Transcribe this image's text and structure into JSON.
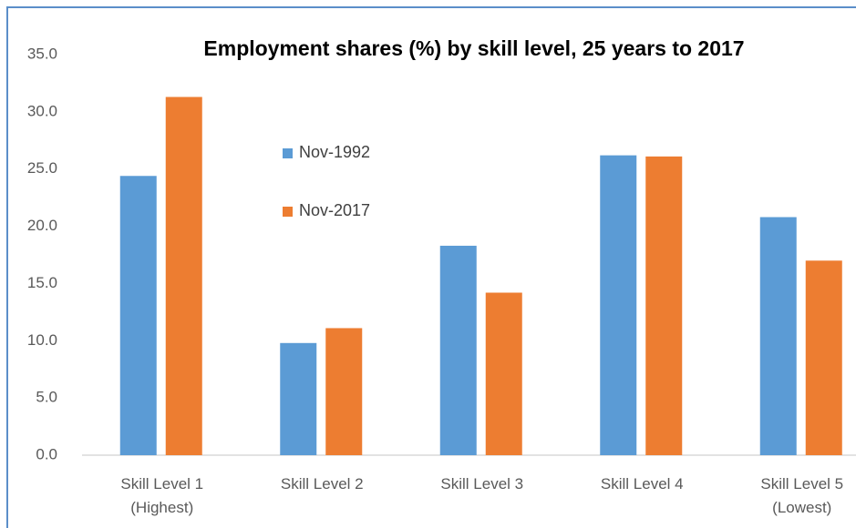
{
  "chart_data": {
    "type": "bar",
    "title": "Employment shares (%) by skill level, 25 years to 2017",
    "categories": [
      [
        "Skill Level 1",
        "(Highest)"
      ],
      [
        "Skill Level 2"
      ],
      [
        "Skill Level 3"
      ],
      [
        "Skill Level 4"
      ],
      [
        "Skill Level 5",
        "(Lowest)"
      ]
    ],
    "series": [
      {
        "name": "Nov-1992",
        "color": "#5b9bd5",
        "values": [
          24.4,
          9.8,
          18.3,
          26.2,
          20.8
        ]
      },
      {
        "name": "Nov-2017",
        "color": "#ed7d31",
        "values": [
          31.3,
          11.1,
          14.2,
          26.1,
          17.0
        ]
      }
    ],
    "ylim": [
      0,
      35
    ],
    "yticks": [
      {
        "value": 0,
        "label": "0.0"
      },
      {
        "value": 5,
        "label": "5.0"
      },
      {
        "value": 10,
        "label": "10.0"
      },
      {
        "value": 15,
        "label": "15.0"
      },
      {
        "value": 20,
        "label": "20.0"
      },
      {
        "value": 25,
        "label": "25.0"
      },
      {
        "value": 30,
        "label": "30.0"
      },
      {
        "value": 35,
        "label": "35.0"
      }
    ],
    "grid": false,
    "legend": "inside"
  }
}
